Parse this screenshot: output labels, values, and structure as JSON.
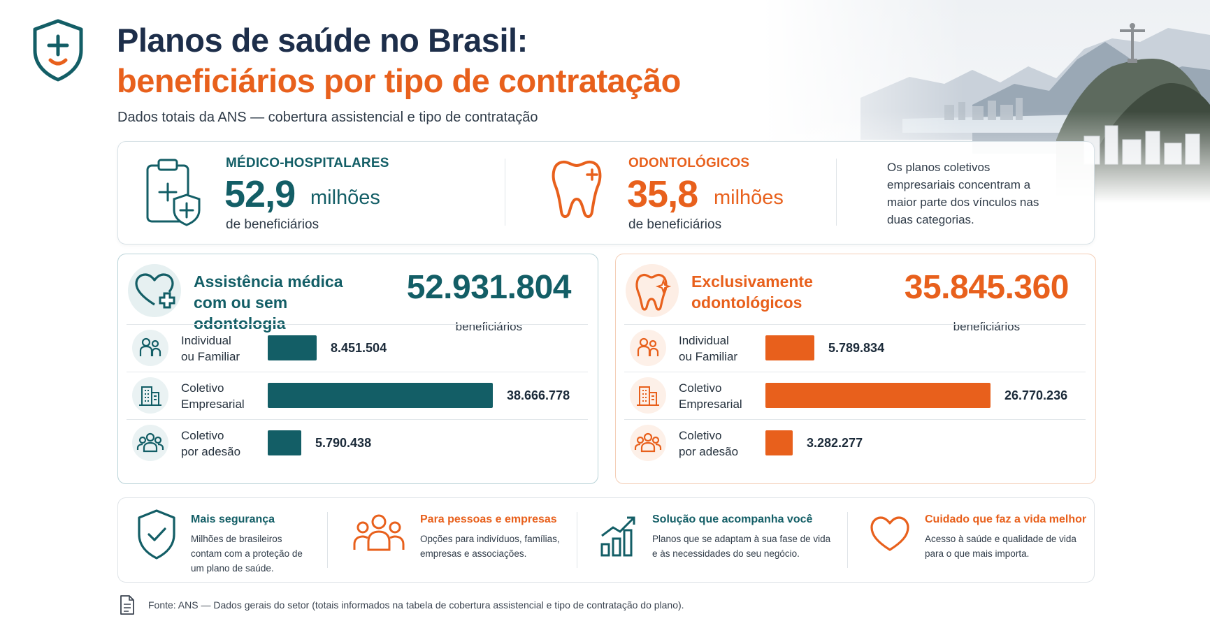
{
  "header": {
    "title_line1": "Planos de saúde no Brasil:",
    "title_line2": "beneficiários por tipo de contratação",
    "subtitle": "Dados totais da ANS — cobertura assistencial e tipo de contratação"
  },
  "colors": {
    "teal": "#135e66",
    "orange": "#e8601c",
    "navy": "#1d2e4a"
  },
  "summary": {
    "medical": {
      "label": "MÉDICO-HOSPITALARES",
      "value": "52,9",
      "unit": "milhões",
      "sub": "de beneficiários",
      "icon": "clipboard-shield-icon"
    },
    "dental": {
      "label": "ODONTOLÓGICOS",
      "value": "35,8",
      "unit": "milhões",
      "sub": "de beneficiários",
      "icon": "tooth-icon"
    },
    "note": "Os planos coletivos empresariais concentram a maior parte dos vínculos nas duas categorias."
  },
  "chart_data": [
    {
      "type": "bar",
      "title": "Assistência médica com ou sem odontologia",
      "total": "52.931.804",
      "total_label": "beneficiários",
      "categories": [
        "Individual\nou Familiar",
        "Coletivo\nEmpresarial",
        "Coletivo\npor adesão"
      ],
      "values": [
        8451504,
        38666778,
        5790438
      ],
      "value_labels": [
        "8.451.504",
        "38.666.778",
        "5.790.438"
      ],
      "icons": [
        "family-icon",
        "building-icon",
        "group-icon"
      ],
      "color": "#135e66"
    },
    {
      "type": "bar",
      "title": "Exclusivamente odontológicos",
      "total": "35.845.360",
      "total_label": "beneficiários",
      "categories": [
        "Individual\nou Familiar",
        "Coletivo\nEmpresarial",
        "Coletivo\npor adesão"
      ],
      "values": [
        5789834,
        26770236,
        3282277
      ],
      "value_labels": [
        "5.789.834",
        "26.770.236",
        "3.282.277"
      ],
      "icons": [
        "family-icon",
        "building-icon",
        "group-icon"
      ],
      "color": "#e8601c"
    }
  ],
  "features": [
    {
      "title": "Mais segurança",
      "text": "Milhões de brasileiros contam com a proteção de um plano de saúde.",
      "icon": "shield-check-icon",
      "color": "#135e66"
    },
    {
      "title": "Para pessoas e empresas",
      "text": "Opções para indivíduos, famílias, empresas e associações.",
      "icon": "people-icon",
      "color": "#e8601c"
    },
    {
      "title": "Solução que acompanha você",
      "text": "Planos que se adaptam à sua fase de vida e às necessidades do seu negócio.",
      "icon": "growth-chart-icon",
      "color": "#135e66"
    },
    {
      "title": "Cuidado que faz a vida melhor",
      "text": "Acesso à saúde e qualidade de vida para o que mais importa.",
      "icon": "heart-icon",
      "color": "#e8601c"
    }
  ],
  "source": "Fonte: ANS — Dados gerais do setor (totais informados na tabela de cobertura assistencial e tipo de contratação do plano)."
}
